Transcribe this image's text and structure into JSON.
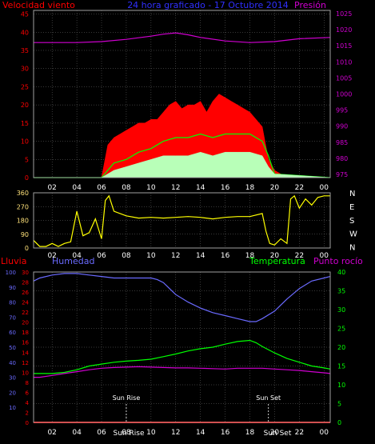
{
  "colors": {
    "red": "#ff0000",
    "blue": "#6a6aff",
    "magenta": "#d000d0",
    "green": "#00ff00",
    "yellow": "#ffff00",
    "white": "#ffffff",
    "mint": "#b8ffb8",
    "ratio_yellow": "#ffe27a",
    "grid": "#707070"
  },
  "header": {
    "left_title": "Velocidad viento",
    "center_title": "24 hora graficado - 17 Octubre 2014",
    "right_title": "Presión"
  },
  "x_ticks": [
    "02",
    "04",
    "06",
    "08",
    "10",
    "12",
    "14",
    "16",
    "18",
    "20",
    "22",
    "00"
  ],
  "chart_data": [
    {
      "type": "area",
      "name": "wind",
      "x_unit": "hour",
      "xlim": [
        0.5,
        24.5
      ],
      "left_axis": {
        "label": "Velocidad viento",
        "ticks": [
          0,
          5,
          10,
          15,
          20,
          25,
          30,
          35,
          40,
          45
        ],
        "ylim": [
          0,
          46
        ]
      },
      "right_axis": {
        "label": "Presión",
        "ticks": [
          975,
          980,
          985,
          990,
          995,
          1000,
          1005,
          1010,
          1015,
          1020,
          1025
        ],
        "ylim": [
          974,
          1026
        ]
      },
      "grid": true,
      "series": [
        {
          "role": "gust",
          "color": "red",
          "x": [
            0.5,
            6.0,
            6.5,
            7.0,
            7.5,
            8.0,
            8.5,
            9.0,
            9.5,
            10.0,
            10.5,
            11.0,
            11.5,
            12.0,
            12.5,
            13.0,
            13.5,
            14.0,
            14.5,
            15.0,
            15.5,
            16.0,
            16.5,
            17.0,
            17.5,
            18.0,
            18.5,
            19.0,
            19.5,
            20.0,
            20.5,
            21.0,
            24.5
          ],
          "values": [
            0,
            0,
            9,
            11,
            12,
            13,
            14,
            15,
            15,
            16,
            16,
            18,
            20,
            21,
            19,
            20,
            20,
            21,
            18,
            21,
            23,
            22,
            21,
            20,
            19,
            18,
            16,
            14,
            5,
            2,
            1,
            0,
            0
          ]
        },
        {
          "role": "average",
          "color": "green",
          "x": [
            0.5,
            6.0,
            7.0,
            8.0,
            9.0,
            10.0,
            11.0,
            12.0,
            13.0,
            14.0,
            15.0,
            16.0,
            17.0,
            18.0,
            19.0,
            19.5,
            20.0,
            24.5
          ],
          "values": [
            0,
            0,
            4,
            5,
            7,
            8,
            10,
            11,
            11,
            12,
            11,
            12,
            12,
            12,
            10,
            6,
            1,
            0
          ]
        },
        {
          "role": "low",
          "color": "mint",
          "x": [
            0.5,
            6.0,
            7.0,
            8.0,
            9.0,
            10.0,
            11.0,
            12.0,
            13.0,
            14.0,
            15.0,
            16.0,
            17.0,
            18.0,
            19.0,
            19.5,
            20.0,
            24.5
          ],
          "values": [
            0,
            0,
            2,
            3,
            4,
            5,
            6,
            6,
            6,
            7,
            6,
            7,
            7,
            7,
            6,
            3,
            1,
            0
          ]
        },
        {
          "role": "pressure",
          "axis": "right",
          "color": "magenta",
          "x": [
            0.5,
            2,
            4,
            6,
            8,
            10,
            11,
            12,
            13,
            14,
            16,
            18,
            20,
            22,
            24.5
          ],
          "values": [
            1016,
            1016,
            1016,
            1016.3,
            1017,
            1018,
            1018.6,
            1019,
            1018.4,
            1017.6,
            1016.5,
            1016,
            1016.3,
            1017.2,
            1017.6
          ]
        }
      ]
    },
    {
      "type": "line",
      "name": "wind-direction",
      "x_unit": "hour",
      "xlim": [
        0.5,
        24.5
      ],
      "left_axis": {
        "ticks": [
          0,
          90,
          180,
          270,
          360
        ],
        "ylim": [
          0,
          360
        ]
      },
      "right_axis": {
        "ticks": [
          "N",
          "W",
          "S",
          "E",
          "N"
        ]
      },
      "grid": true,
      "series": [
        {
          "role": "direction",
          "color": "yellow",
          "x": [
            0.5,
            1.0,
            1.5,
            2.0,
            2.5,
            3.0,
            3.5,
            4.0,
            4.5,
            5.0,
            5.5,
            6.0,
            6.3,
            6.6,
            7.0,
            8,
            9,
            10,
            11,
            12,
            13,
            14,
            15,
            16,
            17,
            18,
            19.0,
            19.3,
            19.6,
            20.0,
            20.5,
            21.0,
            21.3,
            21.6,
            22.0,
            22.5,
            23.0,
            23.5,
            24.0,
            24.5
          ],
          "values": [
            50,
            10,
            10,
            30,
            10,
            30,
            40,
            240,
            80,
            100,
            190,
            60,
            310,
            340,
            240,
            210,
            195,
            200,
            195,
            200,
            205,
            200,
            190,
            200,
            205,
            205,
            225,
            110,
            30,
            20,
            60,
            30,
            320,
            340,
            260,
            320,
            280,
            330,
            340,
            340
          ]
        }
      ]
    },
    {
      "type": "line",
      "name": "rain-humidity-temperature",
      "x_unit": "hour",
      "xlim": [
        0.5,
        24.5
      ],
      "axes": {
        "rain": {
          "label": "Lluvia",
          "ticks": [
            0,
            2,
            4,
            6,
            8,
            10,
            12,
            14,
            16,
            18,
            20,
            22,
            24,
            26,
            28,
            30
          ],
          "ylim": [
            0,
            30
          ]
        },
        "humidity": {
          "label": "Humedad",
          "ticks": [
            10,
            20,
            30,
            40,
            50,
            60,
            70,
            80,
            90,
            100
          ],
          "ylim": [
            0,
            100
          ]
        },
        "temperature": {
          "label": "Temperatura",
          "ticks": [
            0,
            5,
            10,
            15,
            20,
            25,
            30,
            35,
            40
          ],
          "ylim": [
            0,
            40
          ]
        }
      },
      "grid": true,
      "series": [
        {
          "role": "rain",
          "axis": "rain",
          "color": "red",
          "x": [
            0.5,
            24.5
          ],
          "values": [
            0,
            0
          ]
        },
        {
          "role": "humidity",
          "axis": "humidity",
          "label": "Humedad",
          "color": "blue",
          "x": [
            0.5,
            1,
            2,
            3,
            4,
            5,
            6,
            7,
            8,
            9,
            10,
            10.5,
            11,
            11.5,
            12,
            13,
            14,
            15,
            16,
            17,
            18,
            18.5,
            19,
            20,
            21,
            22,
            23,
            24,
            24.5
          ],
          "values": [
            94,
            96,
            98,
            99,
            99,
            98,
            97,
            96,
            96,
            96,
            96,
            95,
            93,
            89,
            85,
            80,
            76,
            73,
            71,
            69,
            67,
            67,
            69,
            74,
            82,
            89,
            94,
            96,
            97
          ]
        },
        {
          "role": "temperature",
          "axis": "temperature",
          "label": "Temperatura",
          "color": "green",
          "x": [
            0.5,
            1,
            2,
            3,
            4,
            5,
            6,
            7,
            8,
            9,
            10,
            11,
            12,
            13,
            14,
            15,
            16,
            17,
            18,
            18.5,
            19,
            20,
            21,
            22,
            23,
            24,
            24.5
          ],
          "values": [
            13,
            13,
            13,
            13.3,
            14,
            15,
            15.5,
            16,
            16.3,
            16.5,
            16.8,
            17.5,
            18.2,
            19,
            19.6,
            20,
            20.8,
            21.5,
            21.8,
            21.2,
            20.2,
            18.5,
            17,
            16,
            15,
            14.5,
            14.2
          ]
        },
        {
          "role": "dewpoint",
          "axis": "temperature",
          "label": "Punto rocío",
          "color": "magenta",
          "x": [
            0.5,
            1,
            2,
            3,
            4,
            5,
            6,
            7,
            8,
            9,
            10,
            11,
            12,
            13,
            14,
            15,
            16,
            17,
            18,
            19,
            20,
            21,
            22,
            23,
            24,
            24.5
          ],
          "values": [
            12,
            12,
            12.5,
            13,
            13.5,
            14,
            14.4,
            14.6,
            14.7,
            14.8,
            14.7,
            14.6,
            14.5,
            14.5,
            14.4,
            14.3,
            14.2,
            14.4,
            14.4,
            14.4,
            14.2,
            14,
            13.8,
            13.5,
            13.2,
            13
          ]
        }
      ],
      "annotations": [
        {
          "text": "Sun Rise",
          "x": 8.0
        },
        {
          "text": "Sun Set",
          "x": 19.5
        }
      ],
      "bottom_labels": [
        "Sun Rise",
        "Sun Set"
      ]
    }
  ]
}
